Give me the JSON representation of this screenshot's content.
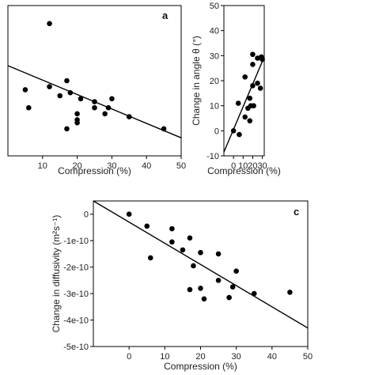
{
  "chart_data": [
    {
      "type": "scatter",
      "panel_label": "a",
      "xlabel": "Compression (%)",
      "ylabel": "",
      "xlim": [
        0,
        50
      ],
      "ylim": [
        0,
        50
      ],
      "xticks": [
        "10",
        "20",
        "30",
        "40",
        "50"
      ],
      "points": [
        {
          "x": 12,
          "y": 44
        },
        {
          "x": 5,
          "y": 22
        },
        {
          "x": 6,
          "y": 16
        },
        {
          "x": 12,
          "y": 23
        },
        {
          "x": 15,
          "y": 20
        },
        {
          "x": 17,
          "y": 25
        },
        {
          "x": 18,
          "y": 21
        },
        {
          "x": 17,
          "y": 9
        },
        {
          "x": 20,
          "y": 14
        },
        {
          "x": 20,
          "y": 12
        },
        {
          "x": 20,
          "y": 11
        },
        {
          "x": 21,
          "y": 19
        },
        {
          "x": 25,
          "y": 18
        },
        {
          "x": 25,
          "y": 16
        },
        {
          "x": 28,
          "y": 14
        },
        {
          "x": 29,
          "y": 16
        },
        {
          "x": 30,
          "y": 19
        },
        {
          "x": 35,
          "y": 13
        },
        {
          "x": 45,
          "y": 9
        }
      ],
      "fit_line": {
        "x": [
          0,
          50
        ],
        "y": [
          30,
          6
        ]
      }
    },
    {
      "type": "scatter",
      "panel_label": "",
      "xlabel": "Compression (%)",
      "ylabel": "Change in angle θ (°)",
      "xlim": [
        -10,
        32
      ],
      "ylim": [
        -10,
        50
      ],
      "xticks": [
        "0",
        "10",
        "20",
        "30"
      ],
      "yticks": [
        "-10",
        "0",
        "10",
        "20",
        "30",
        "40",
        "50"
      ],
      "points": [
        {
          "x": 0,
          "y": 0
        },
        {
          "x": 5,
          "y": 11
        },
        {
          "x": 6,
          "y": -1.5
        },
        {
          "x": 12,
          "y": 21.5
        },
        {
          "x": 12,
          "y": 5.5
        },
        {
          "x": 15,
          "y": 9
        },
        {
          "x": 17,
          "y": 13
        },
        {
          "x": 17,
          "y": 4
        },
        {
          "x": 18,
          "y": 10
        },
        {
          "x": 20,
          "y": 30.5
        },
        {
          "x": 20,
          "y": 26.5
        },
        {
          "x": 20,
          "y": 18
        },
        {
          "x": 21,
          "y": 10
        },
        {
          "x": 25,
          "y": 29
        },
        {
          "x": 25,
          "y": 19
        },
        {
          "x": 28,
          "y": 17
        },
        {
          "x": 29,
          "y": 29.5
        },
        {
          "x": 30,
          "y": 28.5
        }
      ],
      "fit_line": {
        "x": [
          -10,
          32
        ],
        "y": [
          -8.5,
          29.5
        ]
      }
    },
    {
      "type": "scatter",
      "panel_label": "c",
      "xlabel": "Compression (%)",
      "ylabel": "Change in diffusivity (m²s⁻¹)",
      "xlim": [
        -10,
        50
      ],
      "ylim": [
        -5e-10,
        5e-11
      ],
      "xticks": [
        "0",
        "10",
        "20",
        "30",
        "40",
        "50"
      ],
      "yticks": [
        "0",
        "-1e-10",
        "-2e-10",
        "-3e-10",
        "-4e-10",
        "-5e-10"
      ],
      "points": [
        {
          "x": 0,
          "y": 0
        },
        {
          "x": 5,
          "y": -4.5e-11
        },
        {
          "x": 6,
          "y": -1.65e-10
        },
        {
          "x": 12,
          "y": -5.5e-11
        },
        {
          "x": 12,
          "y": -1.05e-10
        },
        {
          "x": 15,
          "y": -1.35e-10
        },
        {
          "x": 17,
          "y": -9e-11
        },
        {
          "x": 17,
          "y": -2.85e-10
        },
        {
          "x": 18,
          "y": -1.95e-10
        },
        {
          "x": 20,
          "y": -1.45e-10
        },
        {
          "x": 20,
          "y": -2.8e-10
        },
        {
          "x": 21,
          "y": -3.2e-10
        },
        {
          "x": 25,
          "y": -1.5e-10
        },
        {
          "x": 25,
          "y": -2.5e-10
        },
        {
          "x": 28,
          "y": -3.15e-10
        },
        {
          "x": 29,
          "y": -2.75e-10
        },
        {
          "x": 30,
          "y": -2.15e-10
        },
        {
          "x": 35,
          "y": -3e-10
        },
        {
          "x": 45,
          "y": -2.95e-10
        }
      ],
      "fit_line": {
        "x": [
          -10,
          50
        ],
        "y": [
          5e-11,
          -4.3e-10
        ]
      }
    }
  ]
}
